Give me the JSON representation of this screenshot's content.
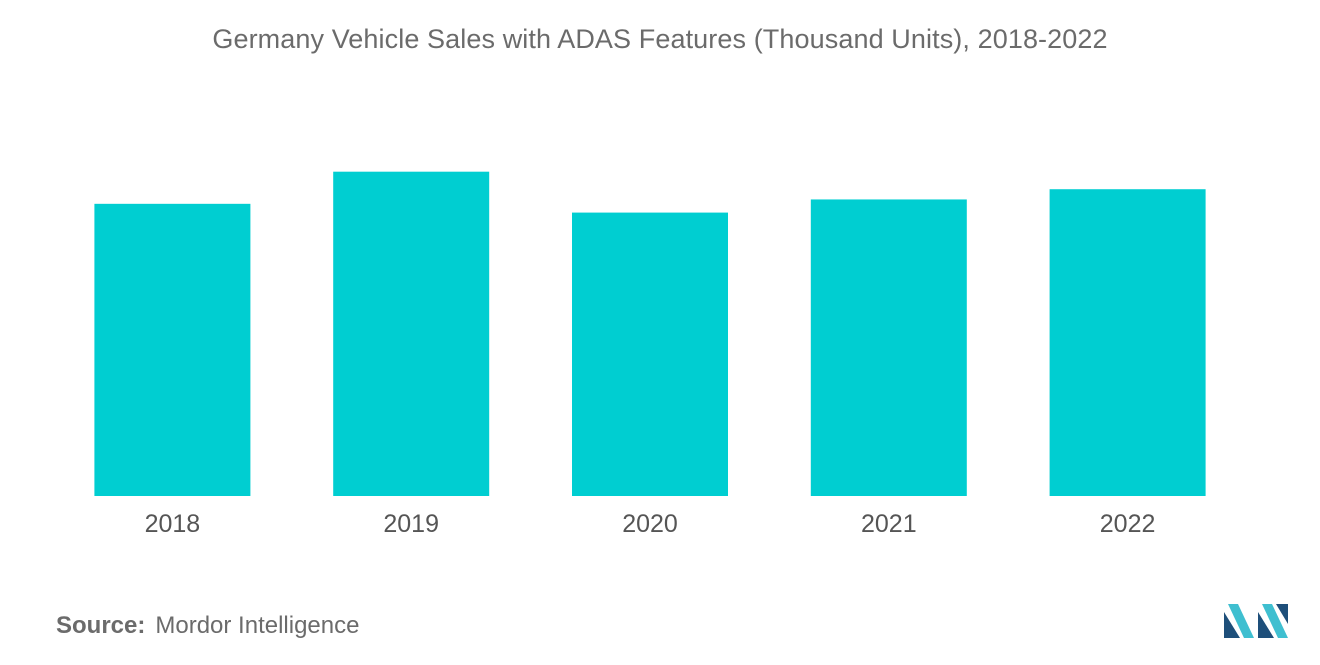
{
  "chart_data": {
    "type": "bar",
    "title": "Germany Vehicle Sales with ADAS Features (Thousand Units), 2018-2022",
    "categories": [
      "2018",
      "2019",
      "2020",
      "2021",
      "2022"
    ],
    "values": [
      100,
      111,
      97,
      101.5,
      105
    ],
    "ylim": [
      0,
      115
    ],
    "xlabel": "",
    "ylabel": "",
    "grid": false,
    "bar_color": "#00ced1"
  },
  "source": {
    "label": "Source:",
    "text": "Mordor Intelligence"
  },
  "logo": {
    "icon": "mordor-intelligence-logo",
    "color_dark": "#1e4f7a",
    "color_light": "#3fbfd0"
  }
}
